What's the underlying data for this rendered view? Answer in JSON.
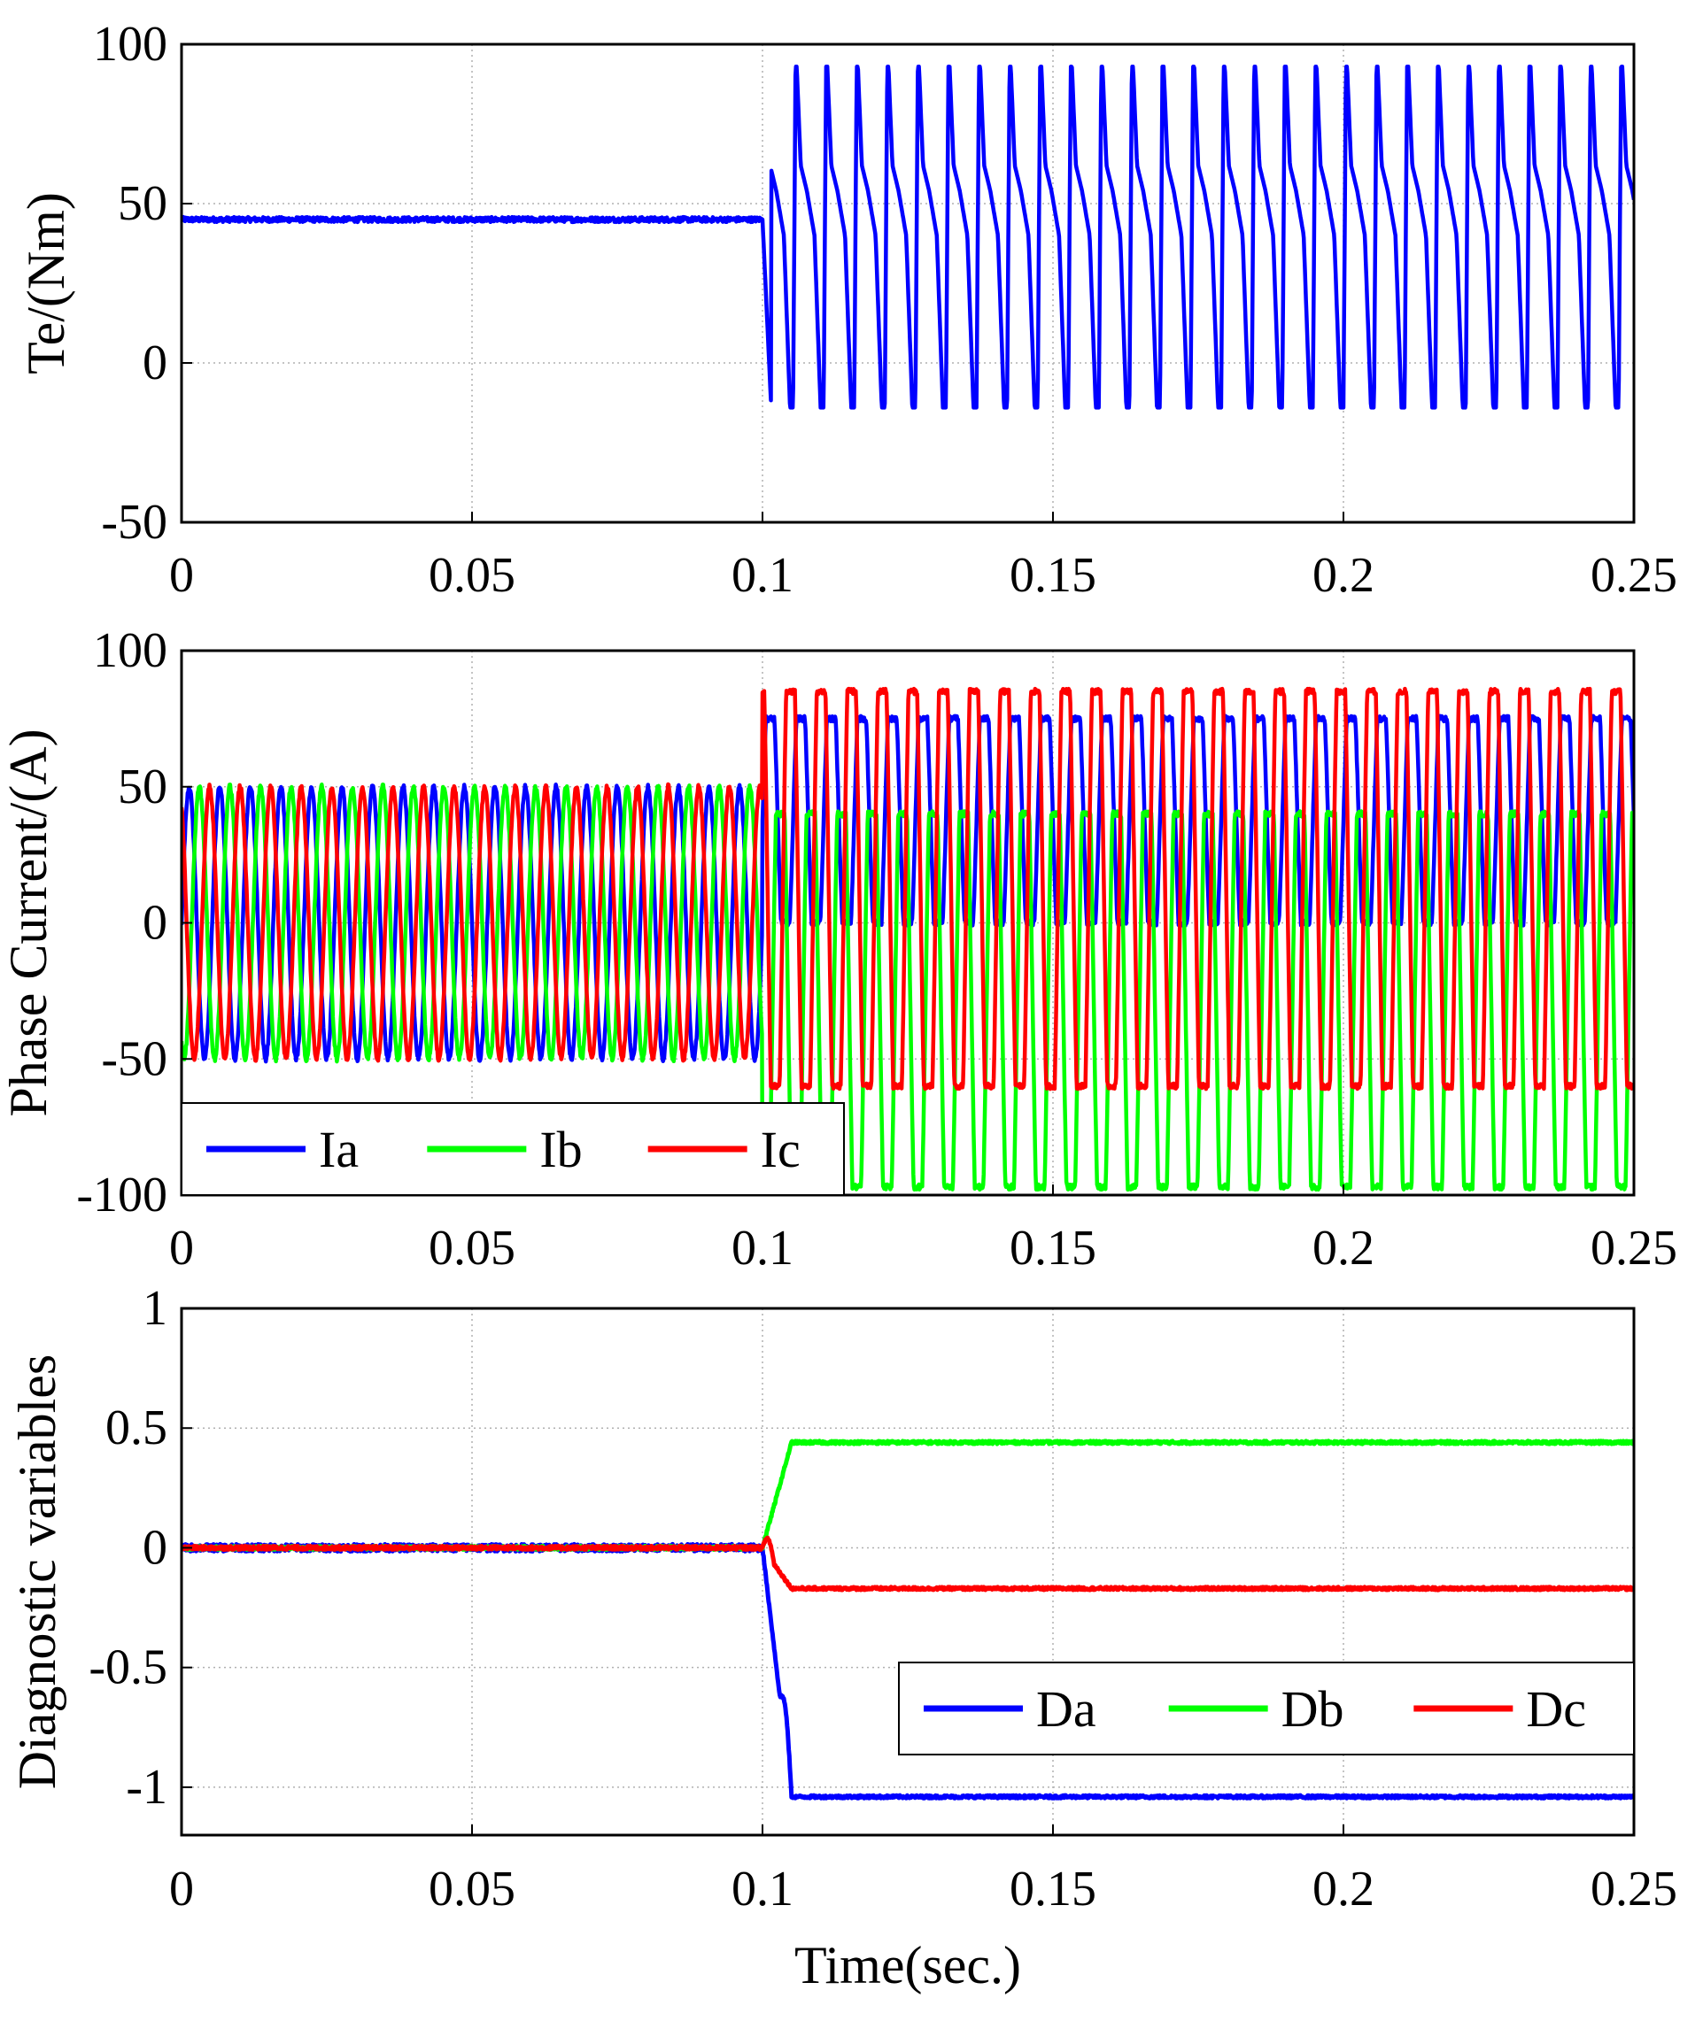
{
  "chart_data": [
    {
      "id": "torque",
      "type": "line",
      "title": "",
      "xlabel": "",
      "ylabel": "Te/(Nm)",
      "xlim": [
        0,
        0.25
      ],
      "ylim": [
        -50,
        100
      ],
      "xticks": [
        0,
        0.05,
        0.1,
        0.15,
        0.2,
        0.25
      ],
      "xtick_labels": [
        "0",
        "0.05",
        "0.1",
        "0.15",
        "0.2",
        "0.25"
      ],
      "yticks": [
        -50,
        0,
        50,
        100
      ],
      "ytick_labels": [
        "-50",
        "0",
        "50",
        "100"
      ],
      "grid": true,
      "legend": null,
      "fault_time": 0.1,
      "series": [
        {
          "name": "Te",
          "color": "#0000ff",
          "pre_fault_value": 45,
          "post_fault_max": 93,
          "post_fault_min": -14,
          "post_fault_frequency_hz": 190
        }
      ]
    },
    {
      "id": "phase_current",
      "type": "line",
      "title": "",
      "xlabel": "",
      "ylabel": "Phase Current/(A)",
      "xlim": [
        0,
        0.25
      ],
      "ylim": [
        -100,
        100
      ],
      "xticks": [
        0,
        0.05,
        0.1,
        0.15,
        0.2,
        0.25
      ],
      "xtick_labels": [
        "0",
        "0.05",
        "0.1",
        "0.15",
        "0.2",
        "0.25"
      ],
      "yticks": [
        -100,
        -50,
        0,
        50,
        100
      ],
      "ytick_labels": [
        "-100",
        "-50",
        "0",
        "50",
        "100"
      ],
      "grid": true,
      "legend": "bottom-left",
      "fault_time": 0.1,
      "series": [
        {
          "name": "Ia",
          "color": "#0000ff",
          "pre_fault_amplitude": 50,
          "post_fault_max": 75,
          "post_fault_min": 0,
          "frequency_hz": 190
        },
        {
          "name": "Ib",
          "color": "#00ff00",
          "pre_fault_amplitude": 50,
          "post_fault_max": 40,
          "post_fault_min": -97,
          "frequency_hz": 190
        },
        {
          "name": "Ic",
          "color": "#ff0000",
          "pre_fault_amplitude": 50,
          "post_fault_max": 85,
          "post_fault_min": -60,
          "frequency_hz": 190
        }
      ]
    },
    {
      "id": "diagnostic",
      "type": "line",
      "title": "",
      "xlabel": "Time(sec.)",
      "ylabel": "Diagnostic variables",
      "xlim": [
        0,
        0.25
      ],
      "ylim": [
        -1.2,
        1
      ],
      "xticks": [
        0,
        0.05,
        0.1,
        0.15,
        0.2,
        0.25
      ],
      "xtick_labels": [
        "0",
        "0.05",
        "0.1",
        "0.15",
        "0.2",
        "0.25"
      ],
      "yticks": [
        -1,
        -0.5,
        0,
        0.5,
        1
      ],
      "ytick_labels": [
        "-1",
        "-0.5",
        "0",
        "0.5",
        "1"
      ],
      "grid": true,
      "legend": "right",
      "fault_time": 0.1,
      "series": [
        {
          "name": "Da",
          "color": "#0000ff",
          "pre_fault_value": 0,
          "post_fault_value": -1.04
        },
        {
          "name": "Db",
          "color": "#00ff00",
          "pre_fault_value": 0,
          "post_fault_value": 0.44
        },
        {
          "name": "Dc",
          "color": "#ff0000",
          "pre_fault_value": 0,
          "post_fault_value": -0.17
        }
      ]
    }
  ]
}
